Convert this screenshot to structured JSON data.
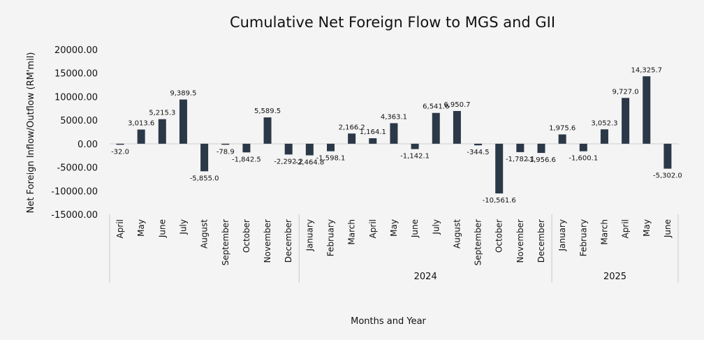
{
  "chart_data": {
    "type": "bar",
    "title": "Cumulative Net Foreign Flow to MGS and GII",
    "xlabel": "Months and Year",
    "ylabel": "Net Foreign Inflow/Outflow (RM'mil)",
    "ylim": [
      -15000,
      20000
    ],
    "yticks": [
      "20000.00",
      "15000.00",
      "10000.00",
      "5000.00",
      "0.00",
      "-5000.00",
      "-10000.00",
      "-15000.00"
    ],
    "ytick_values": [
      20000,
      15000,
      10000,
      5000,
      0,
      -5000,
      -10000,
      -15000
    ],
    "grid": false,
    "legend": "none",
    "bar_color": "#2b3848",
    "categories": [
      "April",
      "May",
      "June",
      "July",
      "August",
      "September",
      "October",
      "November",
      "December",
      "January",
      "February",
      "March",
      "April",
      "May",
      "June",
      "July",
      "August",
      "September",
      "October",
      "November",
      "December",
      "January",
      "February",
      "March",
      "April",
      "May",
      "June"
    ],
    "values": [
      -32.0,
      3013.6,
      5215.3,
      9389.5,
      -5855.0,
      -78.9,
      -1842.5,
      5589.5,
      -2292.2,
      -2464.8,
      -1598.1,
      2166.2,
      1164.1,
      4363.1,
      -1142.1,
      6541.6,
      6950.7,
      -344.5,
      -10561.6,
      -1782.1,
      -1956.6,
      1975.6,
      -1600.1,
      3052.3,
      9727.0,
      14325.7,
      -5302.0
    ],
    "data_labels": [
      "-32.0",
      "3,013.6",
      "5,215.3",
      "9,389.5",
      "-5,855.0",
      "-78.9",
      "-1,842.5",
      "5,589.5",
      "-2,292.2",
      "-2,464.8",
      "-1,598.1",
      "2,166.2",
      "1,164.1",
      "4,363.1",
      "-1,142.1",
      "6,541.6",
      "6,950.7",
      "-344.5",
      "-10,561.6",
      "-1,782.1",
      "-1,956.6",
      "1,975.6",
      "-1,600.1",
      "3,052.3",
      "9,727.0",
      "14,325.7",
      "-5,302.0"
    ],
    "year_groups": [
      {
        "label": "",
        "start": 0,
        "end": 8
      },
      {
        "label": "2024",
        "start": 9,
        "end": 20
      },
      {
        "label": "2025",
        "start": 21,
        "end": 26
      }
    ]
  }
}
